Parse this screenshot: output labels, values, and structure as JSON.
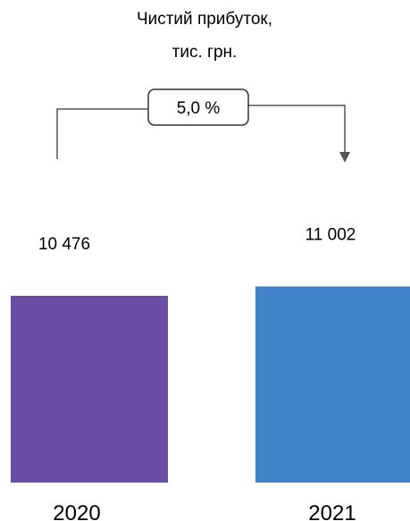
{
  "chart_data": {
    "type": "bar",
    "title_lines": [
      "Чистий прибуток,",
      "тис. грн."
    ],
    "categories": [
      "2020",
      "2021"
    ],
    "values": [
      10476,
      11002
    ],
    "value_labels": [
      "10 476",
      "11 002"
    ],
    "colors": [
      "#6a4ea6",
      "#3f84c8"
    ],
    "change_label": "5,0 %",
    "xlabel": "",
    "ylabel": ""
  }
}
